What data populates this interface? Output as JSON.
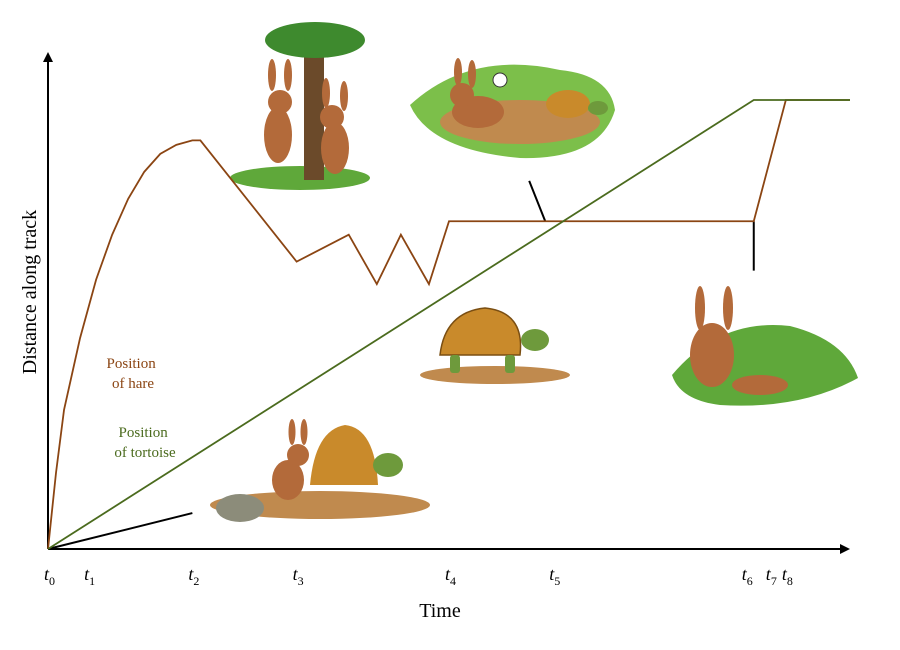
{
  "chart_data": {
    "type": "line",
    "xlabel": "Time",
    "ylabel": "Distance along track",
    "x_ticks": [
      {
        "base": "t",
        "sub": "0"
      },
      {
        "base": "t",
        "sub": "1"
      },
      {
        "base": "t",
        "sub": "2"
      },
      {
        "base": "t",
        "sub": "3"
      },
      {
        "base": "t",
        "sub": "4"
      },
      {
        "base": "t",
        "sub": "5"
      },
      {
        "base": "t",
        "sub": "6"
      },
      {
        "base": "t",
        "sub": "7"
      },
      {
        "base": "t",
        "sub": "8"
      }
    ],
    "x_tick_values": [
      0,
      0.05,
      0.18,
      0.31,
      0.5,
      0.63,
      0.87,
      0.9,
      0.92
    ],
    "xlim": [
      0,
      1
    ],
    "ylim": [
      0,
      1
    ],
    "grid": false,
    "series": [
      {
        "name": "Position of hare",
        "label_lines": [
          "Position",
          "of hare"
        ],
        "color": "#8B4513",
        "points": [
          [
            0.0,
            0.0
          ],
          [
            0.01,
            0.17
          ],
          [
            0.02,
            0.31
          ],
          [
            0.04,
            0.47
          ],
          [
            0.06,
            0.6
          ],
          [
            0.08,
            0.7
          ],
          [
            0.1,
            0.78
          ],
          [
            0.12,
            0.84
          ],
          [
            0.14,
            0.88
          ],
          [
            0.16,
            0.9
          ],
          [
            0.18,
            0.91
          ],
          [
            0.19,
            0.91
          ],
          [
            0.31,
            0.64
          ],
          [
            0.375,
            0.7
          ],
          [
            0.41,
            0.59
          ],
          [
            0.44,
            0.7
          ],
          [
            0.475,
            0.59
          ],
          [
            0.5,
            0.73
          ],
          [
            0.87,
            0.73
          ],
          [
            0.88,
            0.73
          ],
          [
            0.92,
            1.0
          ],
          [
            1.0,
            1.0
          ]
        ]
      },
      {
        "name": "Position of tortoise",
        "label_lines": [
          "Position",
          "of tortoise"
        ],
        "color": "#4B6B1E",
        "points": [
          [
            0.0,
            0.0
          ],
          [
            0.88,
            1.0
          ],
          [
            1.0,
            1.0
          ]
        ]
      }
    ],
    "callouts": [
      {
        "name": "start-callout",
        "from": [
          0.0,
          0.0
        ],
        "to": [
          0.18,
          0.08
        ]
      },
      {
        "name": "sleep-callout",
        "from": [
          0.62,
          0.73
        ],
        "to": [
          0.6,
          0.82
        ]
      },
      {
        "name": "wake-callout",
        "from": [
          0.88,
          0.73
        ],
        "to": [
          0.88,
          0.62
        ]
      }
    ],
    "colors": {
      "axis": "#000000",
      "hare": "#8B4513",
      "tortoise": "#4B6B1E",
      "grass": "#5FA83A",
      "dirt": "#C08A4E",
      "shell": "#C98A2B",
      "turtle_skin": "#6E9A3C",
      "hare_fur": "#B36A3A",
      "tree": "#6B4A2A",
      "sky": "#CFE3F5"
    }
  }
}
